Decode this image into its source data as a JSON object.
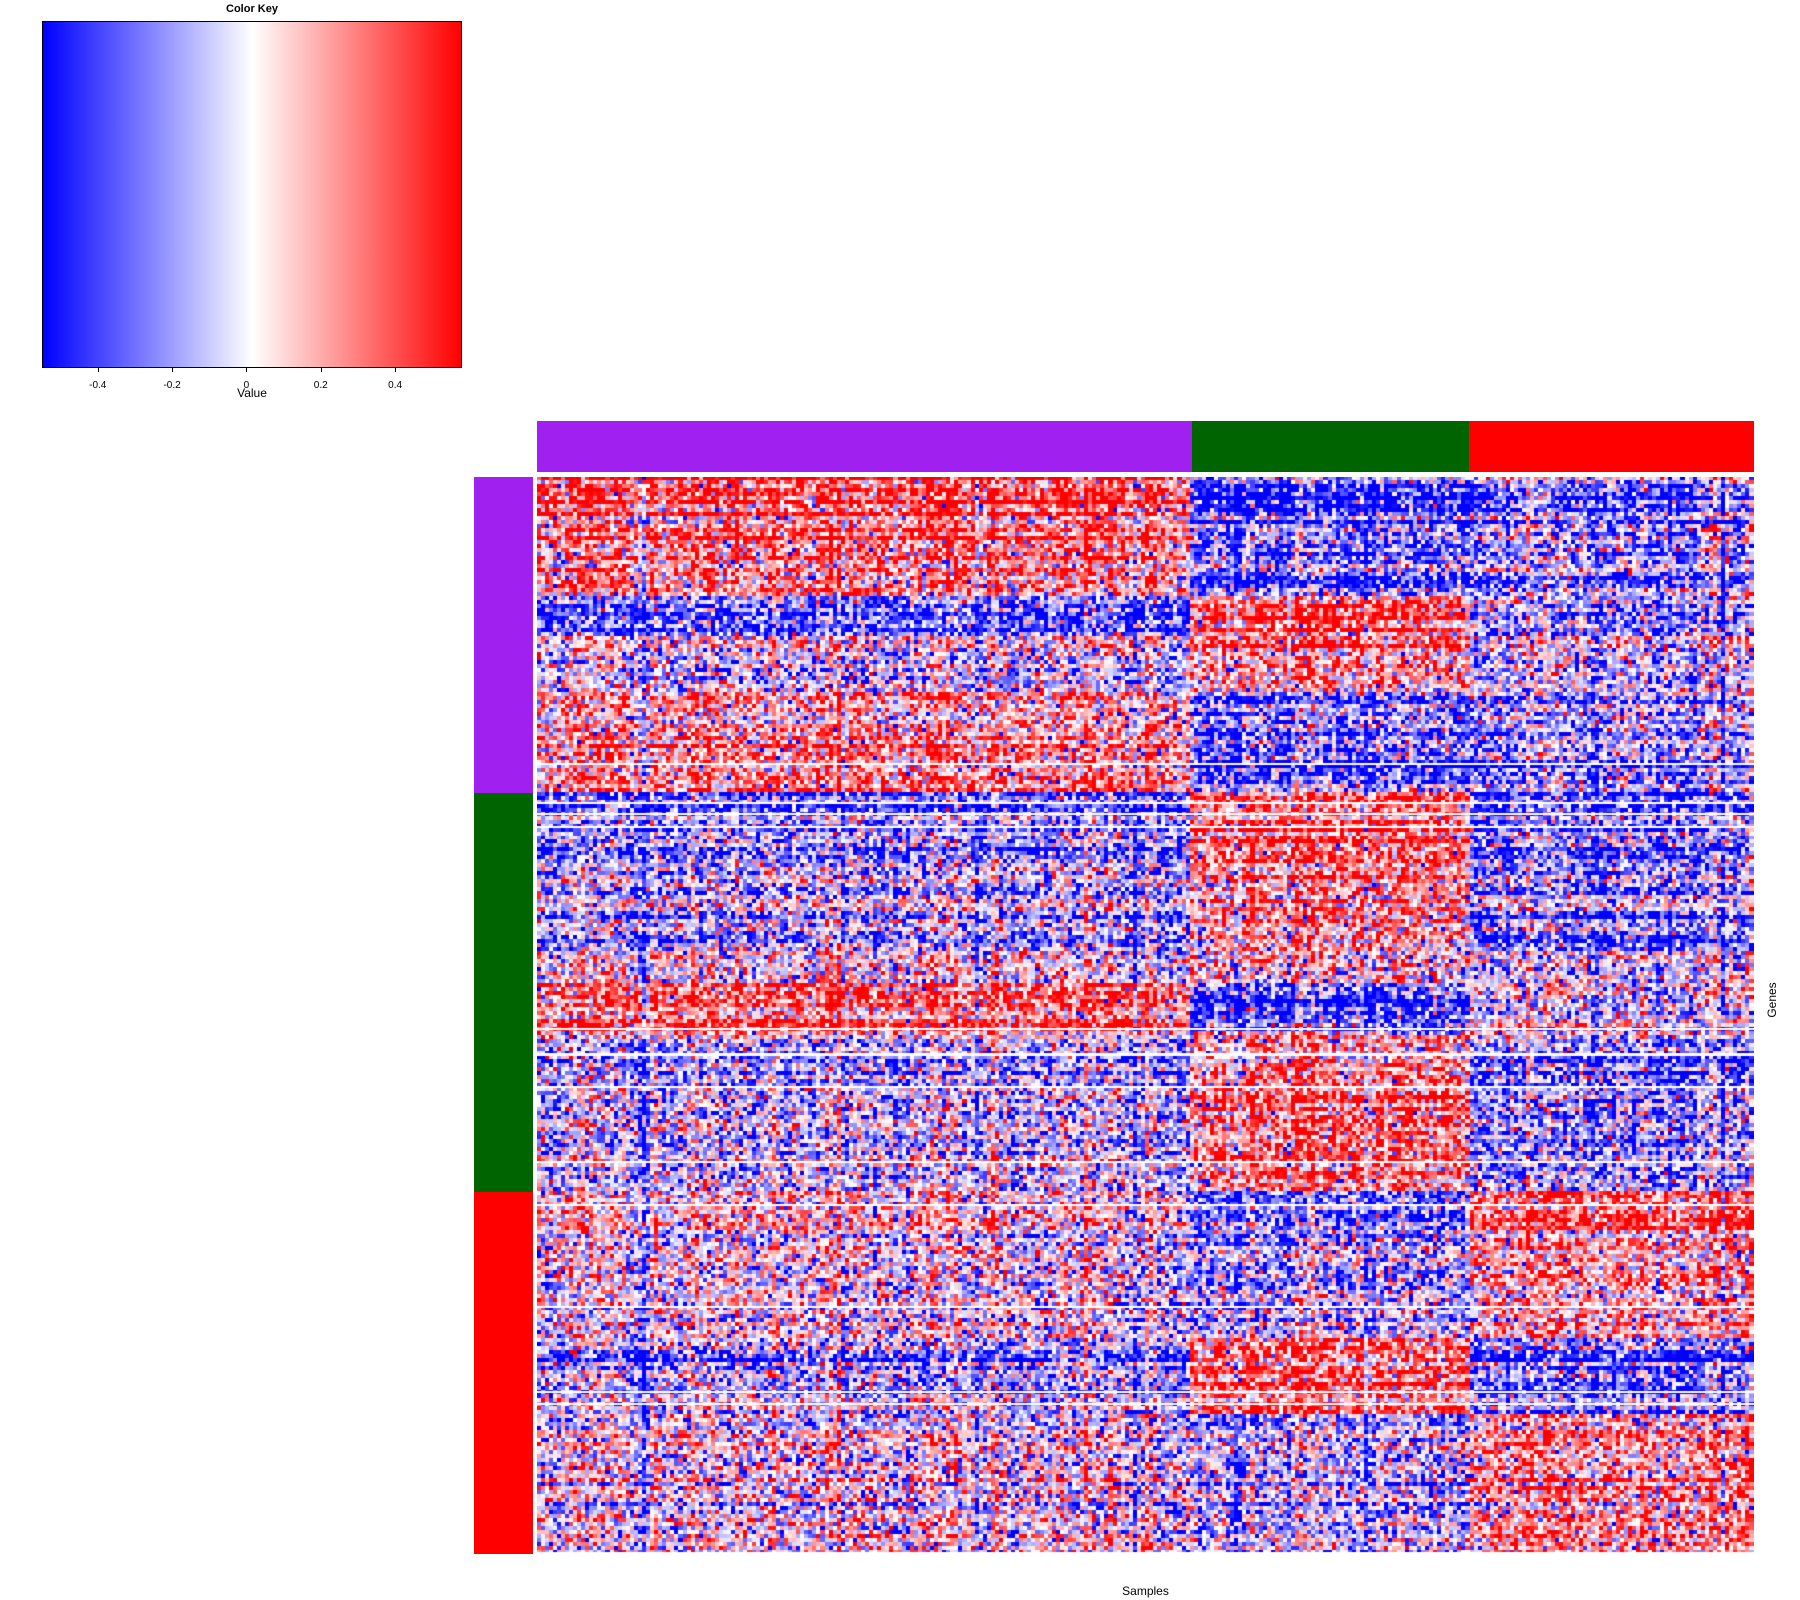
{
  "chart_data": {
    "type": "heatmap",
    "title": "",
    "xlabel": "Samples",
    "ylabel": "Genes",
    "color_key": {
      "title": "Color Key",
      "xlabel": "Value",
      "range": [
        -0.55,
        0.58
      ],
      "ticks": [
        -0.4,
        -0.2,
        0,
        0.2,
        0.4
      ],
      "tick_labels": [
        "-0.4",
        "-0.2",
        "0",
        "0.2",
        "0.4"
      ],
      "colors": [
        "#0000ff",
        "#ffffff",
        "#ff0000"
      ]
    },
    "column_groups": [
      {
        "name": "group1",
        "color": "#a020f0",
        "fraction": 0.538
      },
      {
        "name": "group2",
        "color": "#006400",
        "fraction": 0.228
      },
      {
        "name": "group3",
        "color": "#ff0000",
        "fraction": 0.234
      }
    ],
    "row_groups": [
      {
        "name": "group1",
        "color": "#a020f0",
        "fraction": 0.293
      },
      {
        "name": "group2",
        "color": "#006400",
        "fraction": 0.371
      },
      {
        "name": "group3",
        "color": "#ff0000",
        "fraction": 0.336
      }
    ],
    "block_means": [
      [
        0.25,
        -0.3,
        -0.2
      ],
      [
        -0.15,
        0.3,
        -0.25
      ],
      [
        0.0,
        -0.15,
        0.25
      ]
    ],
    "row_bands": [
      {
        "start": 0.0,
        "end": 0.04,
        "means": [
          0.35,
          -0.45,
          -0.3
        ]
      },
      {
        "start": 0.11,
        "end": 0.15,
        "means": [
          -0.45,
          0.45,
          -0.25
        ]
      },
      {
        "start": 0.15,
        "end": 0.2,
        "means": [
          -0.05,
          0.3,
          -0.05
        ]
      },
      {
        "start": 0.293,
        "end": 0.36,
        "means": [
          -0.35,
          0.5,
          -0.4
        ]
      },
      {
        "start": 0.44,
        "end": 0.47,
        "means": [
          -0.05,
          0.05,
          -0.1
        ]
      },
      {
        "start": 0.47,
        "end": 0.52,
        "means": [
          0.35,
          -0.45,
          -0.05
        ]
      },
      {
        "start": 0.664,
        "end": 0.7,
        "means": [
          0.05,
          -0.35,
          0.4
        ]
      },
      {
        "start": 0.8,
        "end": 0.87,
        "means": [
          -0.2,
          0.45,
          -0.35
        ]
      }
    ],
    "n_rows": 270,
    "n_cols": 300
  }
}
